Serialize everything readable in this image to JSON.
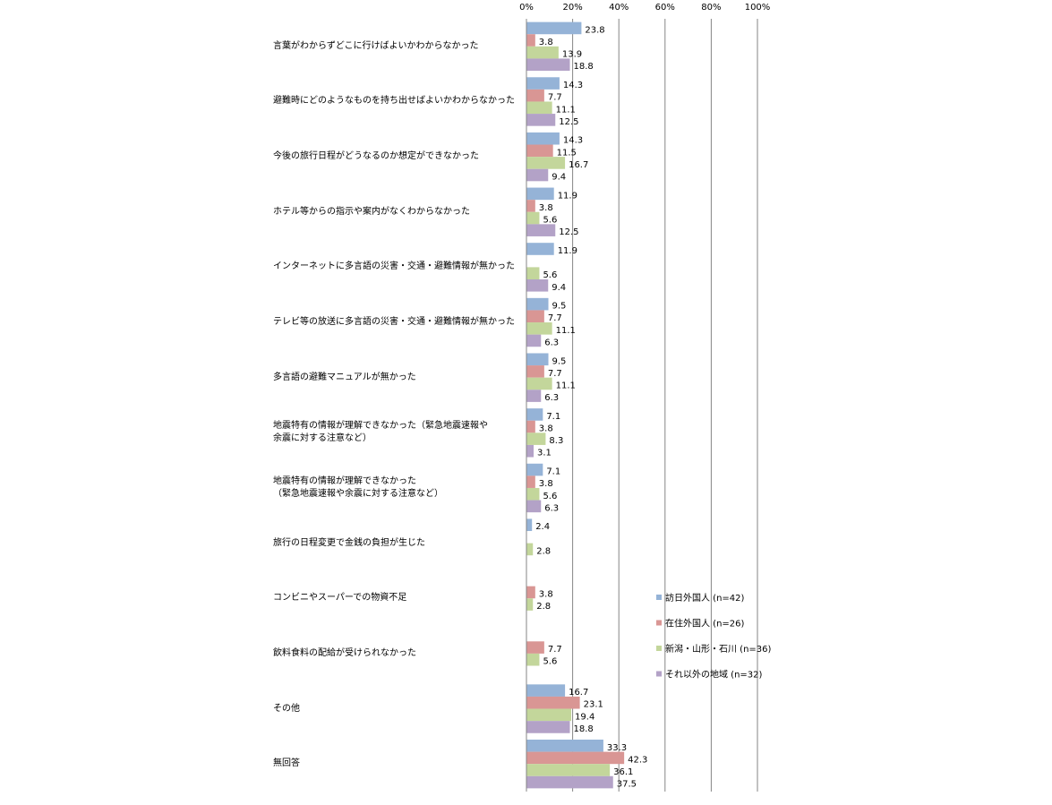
{
  "chart_data": {
    "type": "bar",
    "orientation": "horizontal",
    "categories": [
      "言葉がわからずどこに行けばよいかわからなかった",
      "避難時にどのようなものを持ち出せばよいかわからなかった",
      "今後の旅行日程がどうなるのか想定ができなかった",
      "ホテル等からの指示や案内がなくわからなかった",
      "インターネットに多言語の災害・交通・避難情報が無かった",
      "テレビ等の放送に多言語の災害・交通・避難情報が無かった",
      "多言語の避難マニュアルが無かった",
      "地震特有の情報が理解できなかった（緊急地震速報や\n余震に対する注意など）",
      "地震特有の情報が理解できなかった\n（緊急地震速報や余震に対する注意など）",
      "旅行の日程変更で金銭の負担が生じた",
      "コンビニやスーパーでの物資不足",
      "飲料食料の配給が受けられなかった",
      "その他",
      "無回答"
    ],
    "series": [
      {
        "name": "訪日外国人 (n=42)",
        "color": "#95b3d7",
        "values": [
          23.8,
          14.3,
          14.3,
          11.9,
          11.9,
          9.5,
          9.5,
          7.1,
          7.1,
          2.4,
          null,
          null,
          16.7,
          33.3
        ]
      },
      {
        "name": "在住外国人 (n=26)",
        "color": "#d99694",
        "values": [
          3.8,
          7.7,
          11.5,
          3.8,
          null,
          7.7,
          7.7,
          3.8,
          3.8,
          null,
          3.8,
          7.7,
          23.1,
          42.3
        ]
      },
      {
        "name": "新潟・山形・石川 (n=36)",
        "color": "#c3d69b",
        "values": [
          13.9,
          11.1,
          16.7,
          5.6,
          5.6,
          11.1,
          11.1,
          8.3,
          5.6,
          2.8,
          2.8,
          5.6,
          19.4,
          36.1
        ]
      },
      {
        "name": "それ以外の地域 (n=32)",
        "color": "#b3a2c7",
        "values": [
          18.8,
          12.5,
          9.4,
          12.5,
          9.4,
          6.3,
          6.3,
          3.1,
          6.3,
          null,
          null,
          null,
          18.8,
          37.5
        ]
      }
    ],
    "xlim": [
      0,
      100
    ],
    "xticks": [
      {
        "value": 0,
        "label": "0%"
      },
      {
        "value": 20,
        "label": "20%"
      },
      {
        "value": 40,
        "label": "40%"
      },
      {
        "value": 60,
        "label": "60%"
      },
      {
        "value": 80,
        "label": "80%"
      },
      {
        "value": 100,
        "label": "100%"
      }
    ],
    "grid": true,
    "legend": "right"
  }
}
